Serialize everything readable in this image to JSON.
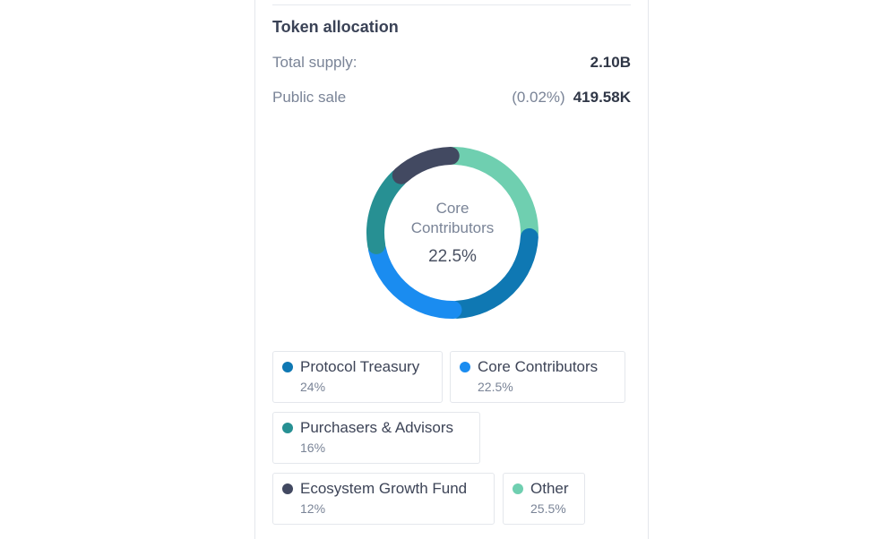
{
  "section_title": "Token allocation",
  "total_supply": {
    "label": "Total supply:",
    "value": "2.10B"
  },
  "public_sale": {
    "label": "Public sale",
    "percent": "(0.02%)",
    "value": "419.58K"
  },
  "donut_center": {
    "line1": "Core",
    "line2": "Contributors",
    "value": "22.5%"
  },
  "chart_data": {
    "type": "pie",
    "series": [
      {
        "name": "Other",
        "value": 25.5,
        "color": "#6fcfb0"
      },
      {
        "name": "Protocol Treasury",
        "value": 24,
        "color": "#0f78b3"
      },
      {
        "name": "Core Contributors",
        "value": 22.5,
        "color": "#1a8cf0"
      },
      {
        "name": "Purchasers & Advisors",
        "value": 16,
        "color": "#279093"
      },
      {
        "name": "Ecosystem Growth Fund",
        "value": 12,
        "color": "#424961"
      }
    ]
  },
  "legend": [
    {
      "label": "Protocol Treasury",
      "percent": "24%",
      "color": "#0f78b3"
    },
    {
      "label": "Core Contributors",
      "percent": "22.5%",
      "color": "#1a8cf0"
    },
    {
      "label": "Purchasers & Advisors",
      "percent": "16%",
      "color": "#279093"
    },
    {
      "label": "Ecosystem Growth Fund",
      "percent": "12%",
      "color": "#424961"
    },
    {
      "label": "Other",
      "percent": "25.5%",
      "color": "#6fcfb0"
    }
  ]
}
